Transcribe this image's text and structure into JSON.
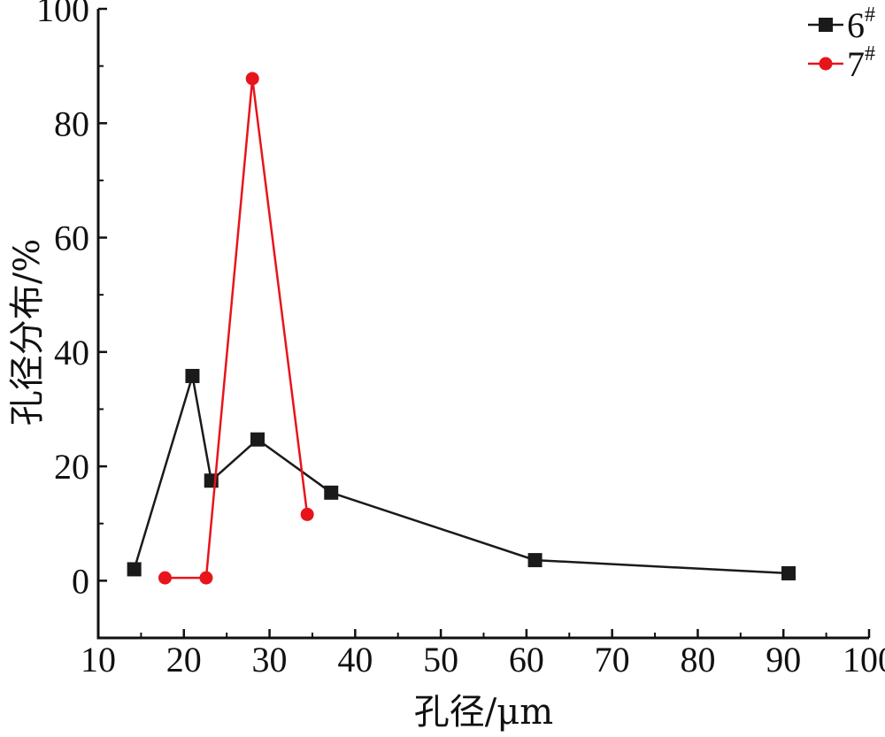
{
  "chart_data": {
    "type": "line",
    "xlabel": "孔径/μm",
    "ylabel": "孔径分布/%",
    "xlim": [
      10,
      100
    ],
    "ylim": [
      -10,
      100
    ],
    "xticks": [
      10,
      20,
      30,
      40,
      50,
      60,
      70,
      80,
      90,
      100
    ],
    "yticks": [
      0,
      20,
      40,
      60,
      80,
      100
    ],
    "legend_position": "top-right",
    "grid": false,
    "series": [
      {
        "name": "6",
        "name_sup": "#",
        "marker": "square",
        "color": "#1a1a1a",
        "x": [
          14.2,
          21.0,
          23.2,
          28.6,
          37.2,
          61.0,
          90.6
        ],
        "y": [
          2.0,
          35.8,
          17.5,
          24.7,
          15.4,
          3.6,
          1.3
        ]
      },
      {
        "name": "7",
        "name_sup": "#",
        "marker": "circle",
        "color": "#e8141b",
        "x": [
          17.8,
          22.6,
          28.0,
          34.4
        ],
        "y": [
          0.5,
          0.5,
          87.8,
          11.6
        ]
      }
    ]
  }
}
